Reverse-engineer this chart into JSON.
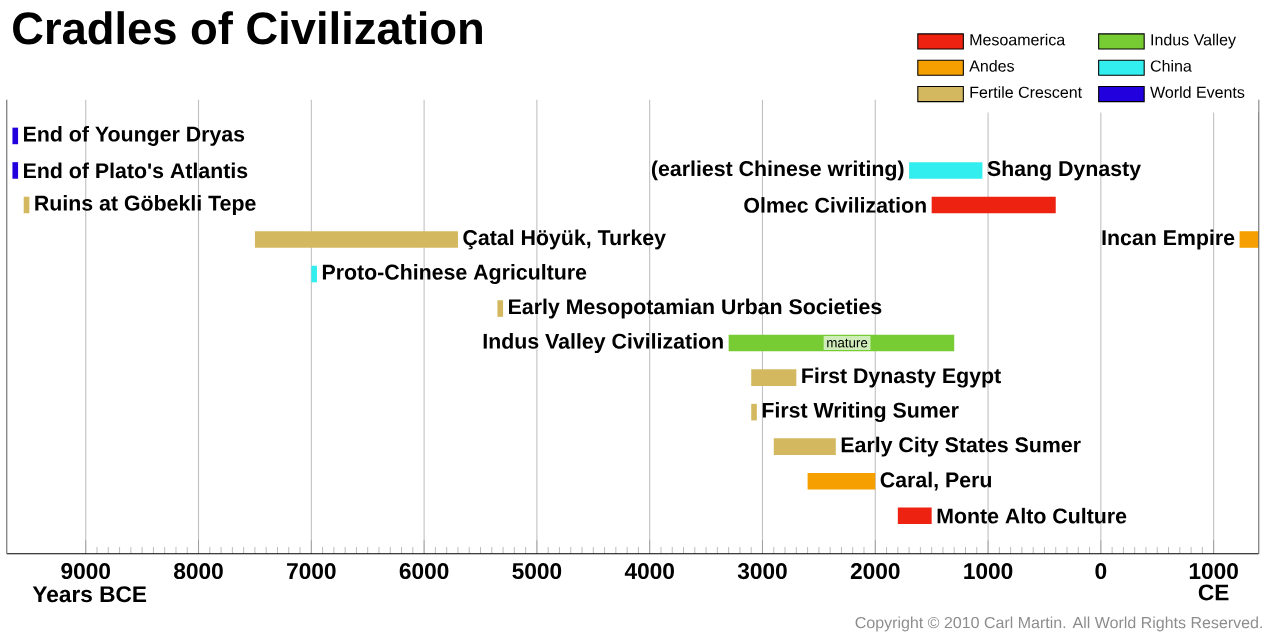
{
  "chart_data": {
    "type": "bar",
    "orientation": "horizontal",
    "title": "Cradles of Civilization",
    "xlabel": "Years BCE",
    "categories": [
      null,
      null,
      null,
      null,
      null,
      null,
      null,
      null,
      null,
      null,
      null,
      null
    ],
    "series": [
      {
        "name": "Mesoamerica",
        "color": "#ee2211",
        "base": [
          null,
          null,
          -1500,
          null,
          null,
          null,
          null,
          null,
          null,
          null,
          null,
          -1800
        ],
        "values": [
          null,
          null,
          1100,
          null,
          null,
          null,
          null,
          null,
          null,
          null,
          null,
          300
        ],
        "value_labels": [
          null,
          null,
          "Olmec Civilization",
          null,
          null,
          null,
          null,
          null,
          null,
          null,
          null,
          "Monte Alto Culture"
        ]
      },
      {
        "name": "Andes",
        "color": "#f5a000",
        "base": [
          null,
          null,
          null,
          1230,
          null,
          null,
          null,
          null,
          null,
          null,
          -2600,
          null
        ],
        "values": [
          null,
          null,
          null,
          170,
          null,
          null,
          null,
          null,
          null,
          null,
          600,
          null
        ],
        "value_labels": [
          null,
          null,
          null,
          "Incan Empire",
          null,
          null,
          null,
          null,
          null,
          null,
          "Caral, Peru",
          null
        ]
      },
      {
        "name": "Fertile Crescent",
        "color": "#d4b860",
        "base": [
          null,
          null,
          -9550,
          -7500,
          null,
          -5350,
          null,
          -3100,
          -3100,
          -2900,
          null,
          null
        ],
        "values": [
          null,
          null,
          50,
          1800,
          null,
          50,
          null,
          400,
          50,
          550,
          null,
          null
        ],
        "value_labels": [
          null,
          null,
          "Ruins at Göbekli Tepe",
          "Çatal Höyük, Turkey",
          null,
          "Early Mesopotamian Urban Societies",
          null,
          "First Dynasty Egypt",
          "First Writing Sumer",
          "Early City States Sumer",
          null,
          null
        ]
      },
      {
        "name": "Indus Valley",
        "color": "#77cc33",
        "base": [
          null,
          null,
          null,
          null,
          null,
          null,
          -3300,
          null,
          null,
          null,
          null,
          null
        ],
        "values": [
          null,
          null,
          null,
          null,
          null,
          null,
          2000,
          null,
          null,
          null,
          null,
          null
        ],
        "value_labels": [
          null,
          null,
          null,
          null,
          null,
          null,
          "Indus Valley Civilization",
          null,
          null,
          null,
          null,
          null
        ]
      },
      {
        "name": "China",
        "color": "#33eeee",
        "base": [
          null,
          -1700,
          null,
          null,
          -7000,
          null,
          null,
          null,
          null,
          null,
          null,
          null
        ],
        "values": [
          null,
          650,
          null,
          null,
          50,
          null,
          null,
          null,
          null,
          null,
          null,
          null
        ],
        "value_labels": [
          null,
          "Shang Dynasty",
          null,
          null,
          "Proto-Chinese Agriculture",
          null,
          null,
          null,
          null,
          null,
          null,
          null
        ]
      },
      {
        "name": "World Events",
        "color": "#2200dd",
        "base": [
          -9650,
          -9650,
          null,
          null,
          null,
          null,
          null,
          null,
          null,
          null,
          null,
          null
        ],
        "values": [
          50,
          50,
          null,
          null,
          null,
          null,
          null,
          null,
          null,
          null,
          null,
          null
        ],
        "value_labels": [
          "End of Younger Dryas",
          "End of Plato's Atlantis",
          null,
          null,
          null,
          null,
          null,
          null,
          null,
          null,
          null,
          null
        ]
      }
    ],
    "xlim": [
      -9700,
      1400
    ],
    "xticks": [
      {
        "value": -9000,
        "label": "9000"
      },
      {
        "value": -8000,
        "label": "8000"
      },
      {
        "value": -7000,
        "label": "7000"
      },
      {
        "value": -6000,
        "label": "6000"
      },
      {
        "value": -5000,
        "label": "5000"
      },
      {
        "value": -4000,
        "label": "4000"
      },
      {
        "value": -3000,
        "label": "3000"
      },
      {
        "value": -2000,
        "label": "2000"
      },
      {
        "value": -1000,
        "label": "1000"
      },
      0,
      {
        "value": 1000,
        "label": "1000 CE"
      }
    ],
    "grid": "x",
    "legend": "top right",
    "annotations": [
      {
        "text": "(earliest Chinese writing)",
        "x": -1700
      },
      {
        "text": "mature",
        "x": -2250
      },
      "Copyright © 2010 Carl Martin. All World Rights Reserved."
    ]
  }
}
